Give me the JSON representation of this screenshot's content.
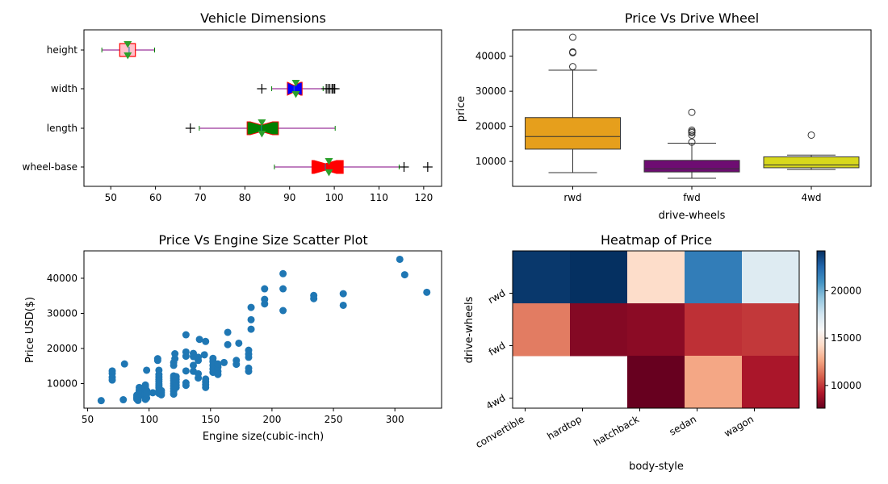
{
  "chart_data": [
    {
      "type": "boxplot",
      "orientation": "horizontal",
      "title": "Vehicle Dimensions",
      "xlabel": "",
      "ylabel": "",
      "xlim": [
        44,
        124
      ],
      "xticks": [
        50,
        60,
        70,
        80,
        90,
        100,
        110,
        120
      ],
      "categories": [
        "height",
        "width",
        "length",
        "wheel-base"
      ],
      "boxes": [
        {
          "name": "height",
          "whislo": 48.0,
          "q1": 52.0,
          "med": 54.1,
          "q3": 55.5,
          "whishi": 59.8,
          "mean": 53.8,
          "fliers": [],
          "notch": false,
          "color": "#ffc0cb"
        },
        {
          "name": "width",
          "whislo": 86.0,
          "q1": 89.5,
          "med": 91.0,
          "q3": 92.8,
          "whishi": 97.5,
          "mean": 91.4,
          "fliers": [
            83.8,
            98.2,
            98.6,
            99.0,
            99.5,
            99.8,
            100.1
          ],
          "notch": true,
          "color": "#0000ff"
        },
        {
          "name": "length",
          "whislo": 69.8,
          "q1": 80.5,
          "med": 83.7,
          "q3": 87.5,
          "whishi": 100.2,
          "mean": 83.8,
          "fliers": [
            67.8
          ],
          "notch": true,
          "color": "#008000"
        },
        {
          "name": "wheel-base",
          "whislo": 86.6,
          "q1": 95.0,
          "med": 98.0,
          "q3": 102.0,
          "whishi": 114.5,
          "mean": 98.8,
          "fliers": [
            115.6,
            120.9
          ],
          "notch": true,
          "color": "#ff0000"
        }
      ]
    },
    {
      "type": "boxplot",
      "orientation": "vertical",
      "title": "Price Vs Drive Wheel",
      "xlabel": "drive-wheels",
      "ylabel": "price",
      "ylim": [
        2900,
        47500
      ],
      "yticks": [
        10000,
        20000,
        30000,
        40000
      ],
      "categories": [
        "rwd",
        "fwd",
        "4wd"
      ],
      "boxes": [
        {
          "name": "rwd",
          "whislo": 6800,
          "q1": 13500,
          "med": 17100,
          "q3": 22500,
          "whishi": 36000,
          "fliers": [
            37000,
            41000,
            41200,
            45400
          ],
          "color": "#e69f1c"
        },
        {
          "name": "fwd",
          "whislo": 5200,
          "q1": 7000,
          "med": 7900,
          "q3": 10300,
          "whishi": 15200,
          "fliers": [
            15500,
            17500,
            18200,
            18500,
            18900,
            24000
          ],
          "color": "#6e0c72"
        },
        {
          "name": "4wd",
          "whislo": 7700,
          "q1": 8200,
          "med": 9000,
          "q3": 11300,
          "whishi": 11800,
          "fliers": [
            17500
          ],
          "color": "#d8d81c"
        }
      ]
    },
    {
      "type": "scatter",
      "title": "Price Vs Engine Size Scatter Plot",
      "xlabel": "Engine size(cubic-inch)",
      "ylabel": "Price USD($)",
      "xlim": [
        47,
        338
      ],
      "ylim": [
        3000,
        47800
      ],
      "xticks": [
        50,
        100,
        150,
        200,
        250,
        300
      ],
      "yticks": [
        10000,
        20000,
        30000,
        40000
      ],
      "color": "#1f77b4",
      "points": [
        [
          61,
          5150
        ],
        [
          70,
          11000
        ],
        [
          70,
          11800
        ],
        [
          70,
          12900
        ],
        [
          70,
          13600
        ],
        [
          79,
          5400
        ],
        [
          80,
          15600
        ],
        [
          90,
          5600
        ],
        [
          90,
          6100
        ],
        [
          90,
          6700
        ],
        [
          91,
          5200
        ],
        [
          92,
          6400
        ],
        [
          92,
          7100
        ],
        [
          92,
          7700
        ],
        [
          92,
          8200
        ],
        [
          92,
          8900
        ],
        [
          97,
          5500
        ],
        [
          97,
          6300
        ],
        [
          97,
          6900
        ],
        [
          97,
          7600
        ],
        [
          97,
          8300
        ],
        [
          97,
          9000
        ],
        [
          97,
          9600
        ],
        [
          98,
          5900
        ],
        [
          98,
          7000
        ],
        [
          98,
          8000
        ],
        [
          98,
          13800
        ],
        [
          103,
          7400
        ],
        [
          108,
          7200
        ],
        [
          108,
          7900
        ],
        [
          108,
          8800
        ],
        [
          108,
          9300
        ],
        [
          108,
          9900
        ],
        [
          108,
          10600
        ],
        [
          108,
          11200
        ],
        [
          108,
          11900
        ],
        [
          108,
          12600
        ],
        [
          108,
          13800
        ],
        [
          107,
          16600
        ],
        [
          107,
          17100
        ],
        [
          110,
          6800
        ],
        [
          110,
          7400
        ],
        [
          110,
          8000
        ],
        [
          120,
          7000
        ],
        [
          120,
          7800
        ],
        [
          120,
          8600
        ],
        [
          120,
          9300
        ],
        [
          120,
          10000
        ],
        [
          120,
          10800
        ],
        [
          120,
          11500
        ],
        [
          120,
          12200
        ],
        [
          120,
          15200
        ],
        [
          120,
          16000
        ],
        [
          121,
          17100
        ],
        [
          121,
          18500
        ],
        [
          122,
          8900
        ],
        [
          122,
          9600
        ],
        [
          122,
          10400
        ],
        [
          122,
          11200
        ],
        [
          122,
          12000
        ],
        [
          130,
          9500
        ],
        [
          130,
          10200
        ],
        [
          130,
          13600
        ],
        [
          130,
          17800
        ],
        [
          130,
          19000
        ],
        [
          130,
          23900
        ],
        [
          136,
          13500
        ],
        [
          136,
          15200
        ],
        [
          136,
          17700
        ],
        [
          136,
          18600
        ],
        [
          140,
          11600
        ],
        [
          140,
          12800
        ],
        [
          140,
          16600
        ],
        [
          140,
          17500
        ],
        [
          141,
          22600
        ],
        [
          145,
          18200
        ],
        [
          146,
          8900
        ],
        [
          146,
          9700
        ],
        [
          146,
          10500
        ],
        [
          146,
          11300
        ],
        [
          146,
          22000
        ],
        [
          152,
          13200
        ],
        [
          152,
          14200
        ],
        [
          152,
          15200
        ],
        [
          152,
          16300
        ],
        [
          152,
          17200
        ],
        [
          156,
          12600
        ],
        [
          156,
          13500
        ],
        [
          156,
          14700
        ],
        [
          156,
          15600
        ],
        [
          161,
          16000
        ],
        [
          164,
          21100
        ],
        [
          164,
          24600
        ],
        [
          171,
          15500
        ],
        [
          171,
          16600
        ],
        [
          173,
          21500
        ],
        [
          181,
          13500
        ],
        [
          181,
          14400
        ],
        [
          181,
          17500
        ],
        [
          181,
          18400
        ],
        [
          181,
          19500
        ],
        [
          183,
          25500
        ],
        [
          183,
          28200
        ],
        [
          183,
          31700
        ],
        [
          194,
          32700
        ],
        [
          194,
          34000
        ],
        [
          194,
          37000
        ],
        [
          209,
          30800
        ],
        [
          209,
          37000
        ],
        [
          209,
          41300
        ],
        [
          234,
          34200
        ],
        [
          234,
          35100
        ],
        [
          258,
          32300
        ],
        [
          258,
          35600
        ],
        [
          304,
          45400
        ],
        [
          308,
          41000
        ],
        [
          326,
          36000
        ]
      ]
    },
    {
      "type": "heatmap",
      "title": "Heatmap of Price",
      "xlabel": "body-style",
      "ylabel": "drive-wheels",
      "x_categories": [
        "convertible",
        "hardtop",
        "hatchback",
        "sedan",
        "wagon"
      ],
      "y_categories": [
        "rwd",
        "fwd",
        "4wd"
      ],
      "values": [
        [
          23949.6,
          24202.714,
          14337.778,
          21711.833,
          16994.222
        ],
        [
          11595.0,
          8249.0,
          8396.387,
          9811.8,
          9997.333
        ],
        [
          null,
          null,
          7603.0,
          12647.333,
          9095.75
        ]
      ],
      "colormap": "RdBu",
      "vmin": 7603,
      "vmax": 24202.714,
      "colorbar_ticks": [
        10000,
        15000,
        20000
      ]
    }
  ]
}
